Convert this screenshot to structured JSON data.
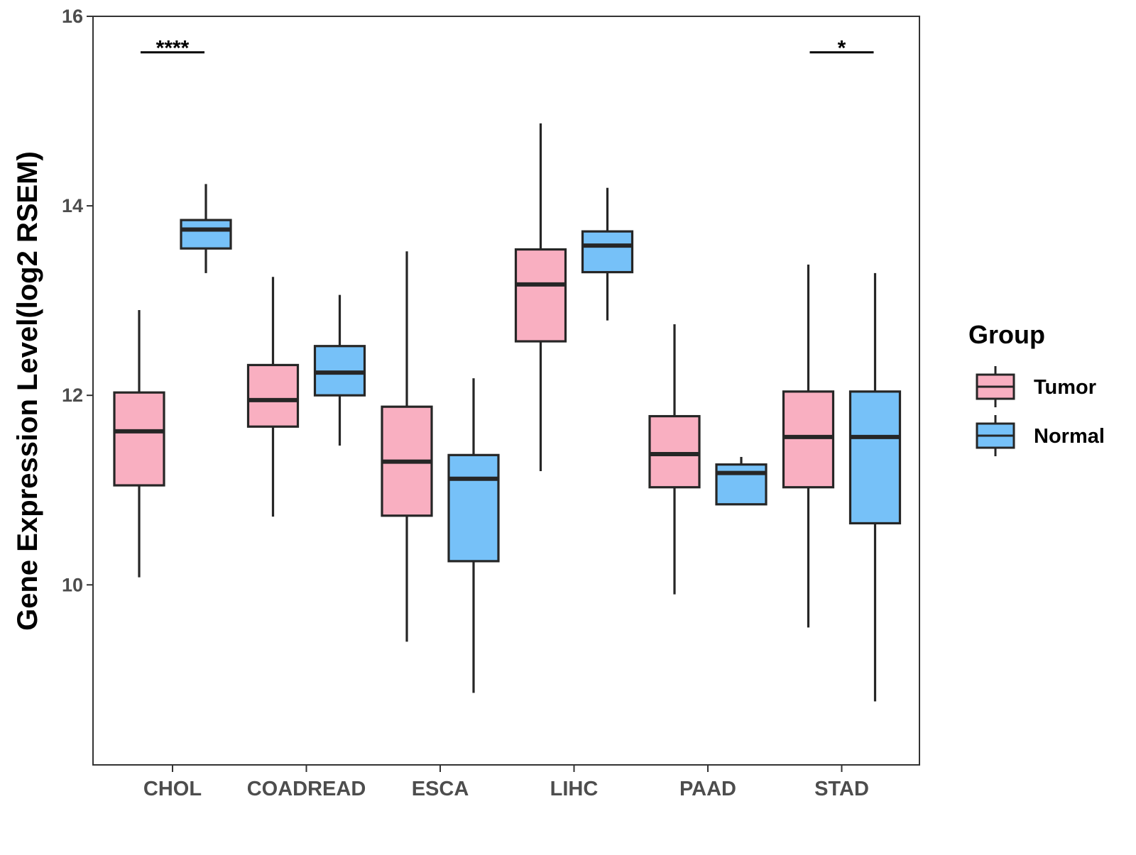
{
  "chart_data": {
    "type": "boxplot",
    "title": "",
    "xlabel": "",
    "ylabel": "Gene Expression Level(log2 RSEM)",
    "ylim": [
      8.1,
      16
    ],
    "yticks": [
      10,
      12,
      14,
      16
    ],
    "categories": [
      "CHOL",
      "COADREAD",
      "ESCA",
      "LIHC",
      "PAAD",
      "STAD"
    ],
    "legend": {
      "title": "Group",
      "position": "right",
      "entries": [
        {
          "name": "Tumor",
          "color": "#F9AFC1"
        },
        {
          "name": "Normal",
          "color": "#76C1F8"
        }
      ]
    },
    "series": [
      {
        "name": "Tumor",
        "color": "#F9AFC1",
        "boxes": [
          {
            "category": "CHOL",
            "min": 10.08,
            "q1": 11.05,
            "median": 11.62,
            "q3": 12.03,
            "max": 12.9
          },
          {
            "category": "COADREAD",
            "min": 10.72,
            "q1": 11.67,
            "median": 11.95,
            "q3": 12.32,
            "max": 13.25
          },
          {
            "category": "ESCA",
            "min": 9.4,
            "q1": 10.73,
            "median": 11.3,
            "q3": 11.88,
            "max": 13.52
          },
          {
            "category": "LIHC",
            "min": 11.2,
            "q1": 12.57,
            "median": 13.17,
            "q3": 13.54,
            "max": 14.87
          },
          {
            "category": "PAAD",
            "min": 9.9,
            "q1": 11.03,
            "median": 11.38,
            "q3": 11.78,
            "max": 12.75
          },
          {
            "category": "STAD",
            "min": 9.55,
            "q1": 11.03,
            "median": 11.56,
            "q3": 12.04,
            "max": 13.38
          }
        ]
      },
      {
        "name": "Normal",
        "color": "#76C1F8",
        "boxes": [
          {
            "category": "CHOL",
            "min": 13.29,
            "q1": 13.55,
            "median": 13.75,
            "q3": 13.85,
            "max": 14.23
          },
          {
            "category": "COADREAD",
            "min": 11.47,
            "q1": 12.0,
            "median": 12.24,
            "q3": 12.52,
            "max": 13.06
          },
          {
            "category": "ESCA",
            "min": 8.86,
            "q1": 10.25,
            "median": 11.12,
            "q3": 11.37,
            "max": 12.18
          },
          {
            "category": "LIHC",
            "min": 12.79,
            "q1": 13.3,
            "median": 13.58,
            "q3": 13.73,
            "max": 14.19
          },
          {
            "category": "PAAD",
            "min": 10.85,
            "q1": 10.85,
            "median": 11.18,
            "q3": 11.27,
            "max": 11.35
          },
          {
            "category": "STAD",
            "min": 8.77,
            "q1": 10.65,
            "median": 11.56,
            "q3": 12.04,
            "max": 13.29
          }
        ]
      }
    ],
    "annotations": [
      {
        "category": "CHOL",
        "label": "****",
        "y": 15.62
      },
      {
        "category": "STAD",
        "label": "*",
        "y": 15.62
      }
    ]
  }
}
